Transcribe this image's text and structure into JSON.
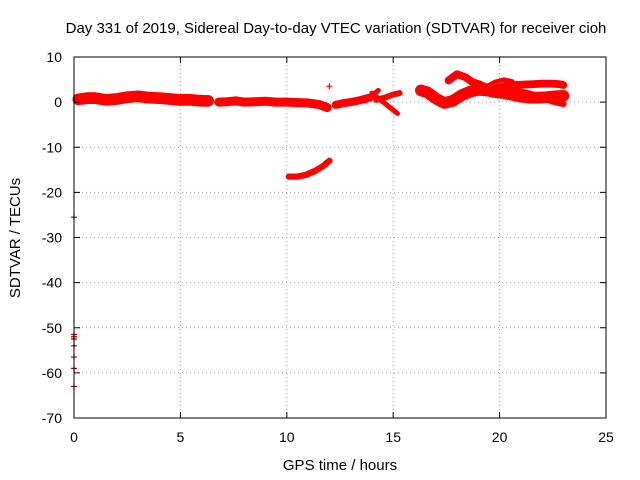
{
  "chart_data": {
    "type": "scatter",
    "title": "Day 331 of 2019, Sidereal Day-to-day VTEC variation (SDTVAR) for receiver cioh",
    "xlabel": "GPS time / hours",
    "ylabel": "SDTVAR / TECUs",
    "xlim": [
      0,
      25
    ],
    "ylim": [
      -70,
      10
    ],
    "xticks": [
      0,
      5,
      10,
      15,
      20,
      25
    ],
    "yticks": [
      10,
      0,
      -10,
      -20,
      -30,
      -40,
      -50,
      -60,
      -70
    ],
    "grid": true,
    "marker": "+",
    "colors": {
      "series": "#ff0000",
      "outlier": "#b00000"
    },
    "bands": [
      {
        "x": [
          0.2,
          0.6,
          1.0,
          1.5,
          2.0,
          2.5,
          3.0,
          3.5,
          4.0,
          4.5,
          5.0,
          5.5,
          6.0,
          6.3
        ],
        "y": [
          0.6,
          0.9,
          0.9,
          0.5,
          0.7,
          1.1,
          1.3,
          1.0,
          0.9,
          0.7,
          0.5,
          0.5,
          0.3,
          0.3
        ],
        "w": 2.6
      },
      {
        "x": [
          6.8,
          7.2,
          7.6,
          8.0,
          8.5,
          9.0,
          9.5,
          10.0,
          10.5,
          11.0,
          11.5,
          11.9
        ],
        "y": [
          0.0,
          0.1,
          0.3,
          0.0,
          0.1,
          0.2,
          0.0,
          0.0,
          -0.1,
          -0.2,
          -0.5,
          -1.2
        ],
        "w": 2.0
      },
      {
        "x": [
          12.3,
          12.7,
          13.1,
          13.5,
          13.9
        ],
        "y": [
          -0.6,
          -0.2,
          0.1,
          0.5,
          1.0
        ],
        "w": 1.8
      },
      {
        "x": [
          13.7,
          14.0,
          14.3
        ],
        "y": [
          0.3,
          1.4,
          2.6
        ],
        "w": 1.1
      },
      {
        "x": [
          14.0,
          14.4,
          14.8,
          15.2
        ],
        "y": [
          2.0,
          0.5,
          -1.0,
          -2.5
        ],
        "w": 1.1
      },
      {
        "x": [
          14.2,
          14.6,
          15.0,
          15.3
        ],
        "y": [
          0.5,
          1.0,
          1.7,
          2.0
        ],
        "w": 1.3
      },
      {
        "x": [
          16.3,
          16.6,
          17.0,
          17.4,
          17.8,
          18.2,
          18.6,
          19.0,
          19.4,
          19.8,
          20.2,
          20.6,
          21.0,
          21.4,
          21.8,
          22.2,
          22.6,
          23.0
        ],
        "y": [
          2.6,
          2.2,
          0.8,
          -0.2,
          0.3,
          1.5,
          2.3,
          2.7,
          2.6,
          2.2,
          2.0,
          1.6,
          1.2,
          1.0,
          1.0,
          1.1,
          1.3,
          1.4
        ],
        "w": 2.6
      },
      {
        "x": [
          17.6,
          18.0,
          18.4,
          18.8,
          19.2,
          19.6,
          20.0,
          20.4,
          20.8,
          21.2,
          21.6,
          22.0,
          22.4,
          22.8,
          23.0
        ],
        "y": [
          4.8,
          6.2,
          5.5,
          4.2,
          3.4,
          3.0,
          3.3,
          3.8,
          3.8,
          3.9,
          4.0,
          4.1,
          4.1,
          4.0,
          3.8
        ],
        "w": 1.7
      },
      {
        "x": [
          18.6,
          19.0,
          19.4,
          19.8,
          20.2,
          20.6,
          21.0,
          21.4,
          21.8,
          22.2,
          22.6,
          23.0
        ],
        "y": [
          4.8,
          4.2,
          3.4,
          3.0,
          2.8,
          2.6,
          2.3,
          1.9,
          1.3,
          0.6,
          0.0,
          -0.4
        ],
        "w": 1.4
      },
      {
        "x": [
          19.4,
          19.8,
          20.2,
          20.6
        ],
        "y": [
          3.5,
          4.5,
          5.0,
          4.6
        ],
        "w": 1.0
      },
      {
        "x": [
          10.1,
          10.5,
          10.9,
          11.3,
          11.7,
          12.0
        ],
        "y": [
          -16.5,
          -16.5,
          -16.1,
          -15.3,
          -14.2,
          -13.0
        ],
        "w": 1.4
      }
    ],
    "points": [
      {
        "x": 12.0,
        "y": 3.5
      },
      {
        "x": 0.0,
        "y": -25.5
      },
      {
        "x": 0.0,
        "y": -51.5
      },
      {
        "x": 0.0,
        "y": -52.0
      },
      {
        "x": 0.0,
        "y": -52.5
      },
      {
        "x": 0.0,
        "y": -54.0
      },
      {
        "x": 0.0,
        "y": -56.5
      },
      {
        "x": 0.0,
        "y": -59.0
      },
      {
        "x": 0.0,
        "y": -63.0
      }
    ]
  }
}
